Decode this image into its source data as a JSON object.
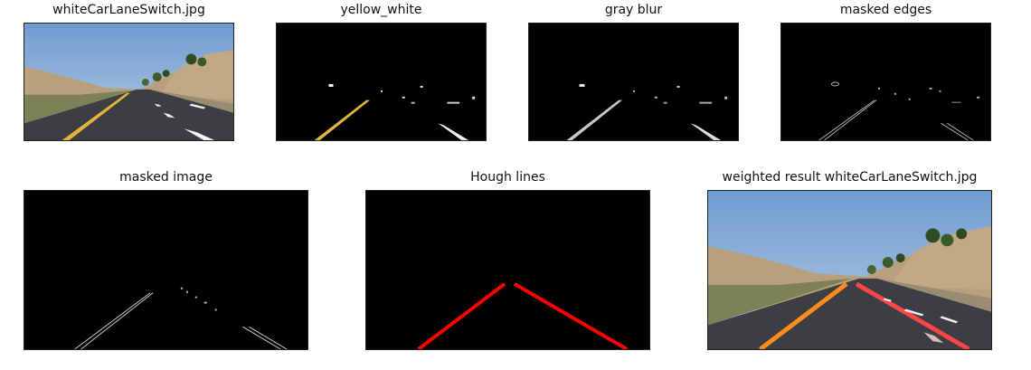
{
  "panels": [
    {
      "id": "original",
      "title": "whiteCarLaneSwitch.jpg"
    },
    {
      "id": "yellow_white",
      "title": "yellow_white"
    },
    {
      "id": "gray_blur",
      "title": "gray blur"
    },
    {
      "id": "masked_edges",
      "title": "masked edges"
    },
    {
      "id": "masked_image",
      "title": "masked image"
    },
    {
      "id": "hough_lines",
      "title": "Hough lines"
    },
    {
      "id": "weighted_result",
      "title": "weighted result whiteCarLaneSwitch.jpg"
    }
  ],
  "colors": {
    "sky": "#7ea7cf",
    "road": "#3b3b42",
    "hill": "#b39a77",
    "grass": "#6f7a4e",
    "yellow_lane": "#e1b43a",
    "white_lane": "#f2f2f2",
    "hough_red": "#ff0000",
    "result_orange": "#ff8a1e",
    "result_red": "#ff4545"
  }
}
